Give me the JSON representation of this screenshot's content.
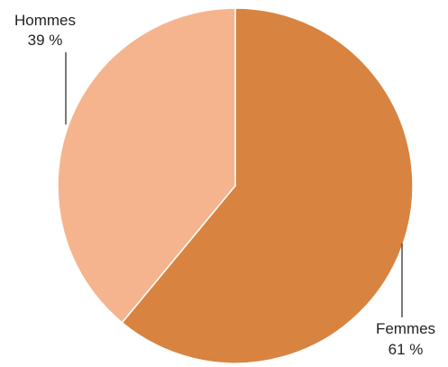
{
  "chart_data": {
    "type": "pie",
    "title": "",
    "slices": [
      {
        "name": "Femmes",
        "value": 61,
        "value_label": "61 %",
        "color": "#D8833F"
      },
      {
        "name": "Hommes",
        "value": 39,
        "value_label": "39 %",
        "color": "#F5B48D"
      }
    ],
    "start_angle_deg": 0,
    "direction": "clockwise",
    "legend": "none",
    "slice_border_color": "#ffffff"
  }
}
